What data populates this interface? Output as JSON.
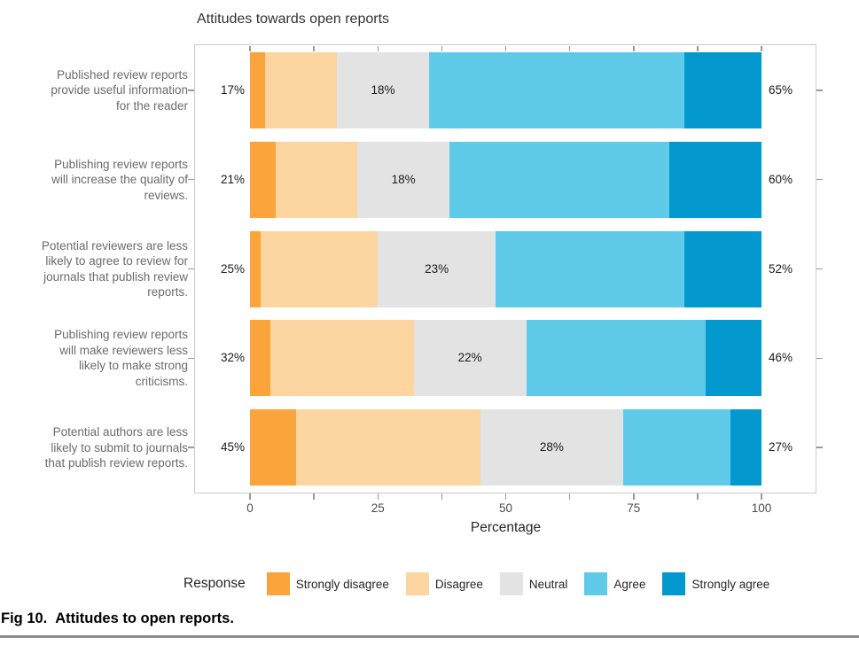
{
  "figure": {
    "caption_fig": "Fig 10.",
    "caption_text": "Attitudes to open reports."
  },
  "chart_data": {
    "type": "bar",
    "subtype": "horizontal_stacked_likert",
    "title": "Attitudes towards open reports",
    "xlabel": "Percentage",
    "xlim": [
      0,
      100
    ],
    "x_major_ticks": [
      0,
      25,
      50,
      75,
      100
    ],
    "x_minor_tick_step": 12.5,
    "grid": false,
    "legend_position": "bottom",
    "legend_title": "Response",
    "series_names": [
      "Strongly disagree",
      "Disagree",
      "Neutral",
      "Agree",
      "Strongly agree"
    ],
    "series_colors": [
      "#FAA43B",
      "#FCD5A1",
      "#E3E3E3",
      "#5FCBE8",
      "#0398CE"
    ],
    "categories": [
      "Published review reports\nprovide useful information\nfor the reader",
      "Publishing review reports\nwill increase the quality of\nreviews.",
      "Potential reviewers are less\nlikely to agree to review for\njournals that publish review\nreports.",
      "Publishing review reports\nwill make reviewers less\nlikely to make strong\ncriticisms.",
      "Potential authors are less\nlikely to submit to journals\nthat publish review reports."
    ],
    "rows": [
      {
        "values": [
          3,
          14,
          18,
          50,
          15
        ],
        "left_label": "17%",
        "neutral_label": "18%",
        "right_label": "65%"
      },
      {
        "values": [
          5,
          16,
          18,
          43,
          18
        ],
        "left_label": "21%",
        "neutral_label": "18%",
        "right_label": "60%"
      },
      {
        "values": [
          2,
          23,
          23,
          37,
          15
        ],
        "left_label": "25%",
        "neutral_label": "23%",
        "right_label": "52%"
      },
      {
        "values": [
          4,
          28,
          22,
          35,
          11
        ],
        "left_label": "32%",
        "neutral_label": "22%",
        "right_label": "46%"
      },
      {
        "values": [
          9,
          36,
          28,
          21,
          6
        ],
        "left_label": "45%",
        "neutral_label": "28%",
        "right_label": "27%"
      }
    ]
  },
  "colors": {
    "panel_border": "#CBCBCB",
    "tick": "#999999",
    "category_text": "#6B6B6B",
    "axis_text": "#4A4A4A"
  }
}
